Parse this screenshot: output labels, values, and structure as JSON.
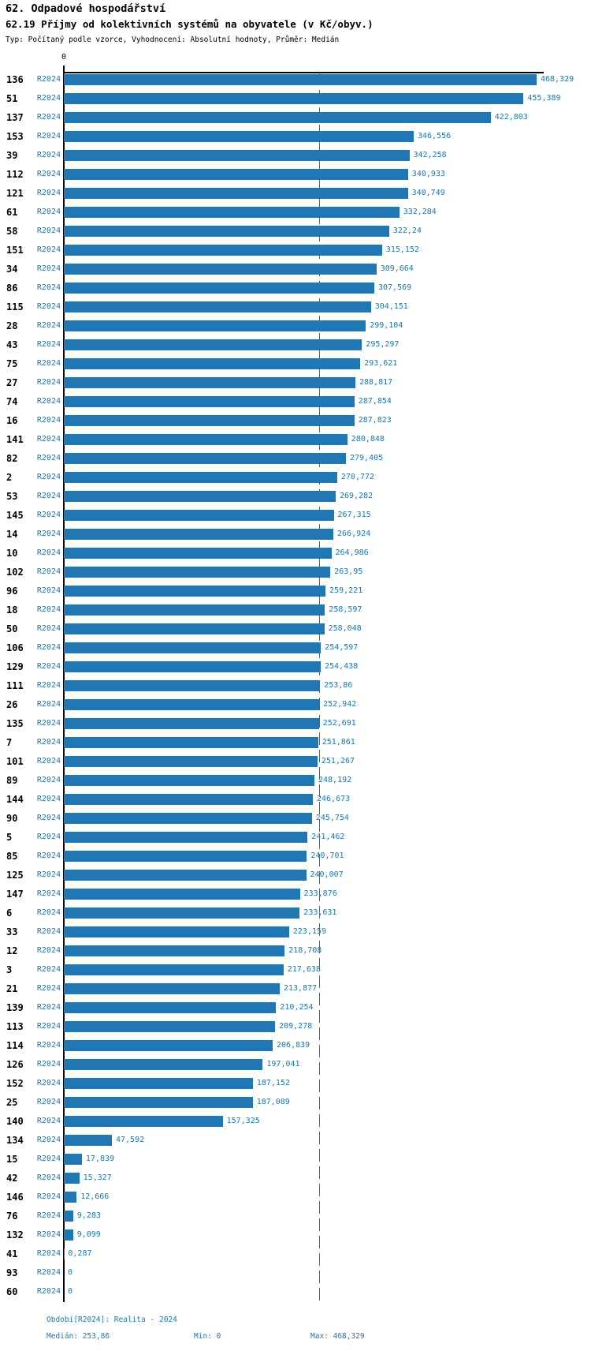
{
  "chart_data": {
    "type": "bar",
    "orientation": "horizontal",
    "title_line1": "62. Odpadové hospodářství",
    "title_line2": "62.19 Příjmy od kolektivních systémů na obyvatele (v Kč/obyv.)",
    "subtitle": "Typ: Počítaný podle vzorce, Vyhodnocení: Absolutní hodnoty, Průměr: Medián",
    "axis": {
      "zero_label": "0",
      "xlim": [
        0,
        475
      ],
      "grid": "none",
      "median_line_value": 253.86
    },
    "colors": {
      "bar": "#1f77b4",
      "value_text": "#1f77b4",
      "period_text": "#1f77b4",
      "id_text": "#000000",
      "median_line": "#1f77b4",
      "axis_line": "#000000"
    },
    "legend": "none",
    "series_period": "R2024",
    "rows": [
      {
        "id": "136",
        "period": "R2024",
        "value": 468.329,
        "value_label": "468,329"
      },
      {
        "id": "51",
        "period": "R2024",
        "value": 455.389,
        "value_label": "455,389"
      },
      {
        "id": "137",
        "period": "R2024",
        "value": 422.803,
        "value_label": "422,803"
      },
      {
        "id": "153",
        "period": "R2024",
        "value": 346.556,
        "value_label": "346,556"
      },
      {
        "id": "39",
        "period": "R2024",
        "value": 342.258,
        "value_label": "342,258"
      },
      {
        "id": "112",
        "period": "R2024",
        "value": 340.933,
        "value_label": "340,933"
      },
      {
        "id": "121",
        "period": "R2024",
        "value": 340.749,
        "value_label": "340,749"
      },
      {
        "id": "61",
        "period": "R2024",
        "value": 332.284,
        "value_label": "332,284"
      },
      {
        "id": "58",
        "period": "R2024",
        "value": 322.24,
        "value_label": "322,24"
      },
      {
        "id": "151",
        "period": "R2024",
        "value": 315.152,
        "value_label": "315,152"
      },
      {
        "id": "34",
        "period": "R2024",
        "value": 309.664,
        "value_label": "309,664"
      },
      {
        "id": "86",
        "period": "R2024",
        "value": 307.569,
        "value_label": "307,569"
      },
      {
        "id": "115",
        "period": "R2024",
        "value": 304.151,
        "value_label": "304,151"
      },
      {
        "id": "28",
        "period": "R2024",
        "value": 299.104,
        "value_label": "299,104"
      },
      {
        "id": "43",
        "period": "R2024",
        "value": 295.297,
        "value_label": "295,297"
      },
      {
        "id": "75",
        "period": "R2024",
        "value": 293.621,
        "value_label": "293,621"
      },
      {
        "id": "27",
        "period": "R2024",
        "value": 288.817,
        "value_label": "288,817"
      },
      {
        "id": "74",
        "period": "R2024",
        "value": 287.854,
        "value_label": "287,854"
      },
      {
        "id": "16",
        "period": "R2024",
        "value": 287.823,
        "value_label": "287,823"
      },
      {
        "id": "141",
        "period": "R2024",
        "value": 280.848,
        "value_label": "280,848"
      },
      {
        "id": "82",
        "period": "R2024",
        "value": 279.405,
        "value_label": "279,405"
      },
      {
        "id": "2",
        "period": "R2024",
        "value": 270.772,
        "value_label": "270,772"
      },
      {
        "id": "53",
        "period": "R2024",
        "value": 269.282,
        "value_label": "269,282"
      },
      {
        "id": "145",
        "period": "R2024",
        "value": 267.315,
        "value_label": "267,315"
      },
      {
        "id": "14",
        "period": "R2024",
        "value": 266.924,
        "value_label": "266,924"
      },
      {
        "id": "10",
        "period": "R2024",
        "value": 264.986,
        "value_label": "264,986"
      },
      {
        "id": "102",
        "period": "R2024",
        "value": 263.95,
        "value_label": "263,95"
      },
      {
        "id": "96",
        "period": "R2024",
        "value": 259.221,
        "value_label": "259,221"
      },
      {
        "id": "18",
        "period": "R2024",
        "value": 258.597,
        "value_label": "258,597"
      },
      {
        "id": "50",
        "period": "R2024",
        "value": 258.048,
        "value_label": "258,048"
      },
      {
        "id": "106",
        "period": "R2024",
        "value": 254.597,
        "value_label": "254,597"
      },
      {
        "id": "129",
        "period": "R2024",
        "value": 254.438,
        "value_label": "254,438"
      },
      {
        "id": "111",
        "period": "R2024",
        "value": 253.86,
        "value_label": "253,86"
      },
      {
        "id": "26",
        "period": "R2024",
        "value": 252.942,
        "value_label": "252,942"
      },
      {
        "id": "135",
        "period": "R2024",
        "value": 252.691,
        "value_label": "252,691"
      },
      {
        "id": "7",
        "period": "R2024",
        "value": 251.861,
        "value_label": "251,861"
      },
      {
        "id": "101",
        "period": "R2024",
        "value": 251.267,
        "value_label": "251,267"
      },
      {
        "id": "89",
        "period": "R2024",
        "value": 248.192,
        "value_label": "248,192"
      },
      {
        "id": "144",
        "period": "R2024",
        "value": 246.673,
        "value_label": "246,673"
      },
      {
        "id": "90",
        "period": "R2024",
        "value": 245.754,
        "value_label": "245,754"
      },
      {
        "id": "5",
        "period": "R2024",
        "value": 241.462,
        "value_label": "241,462"
      },
      {
        "id": "85",
        "period": "R2024",
        "value": 240.701,
        "value_label": "240,701"
      },
      {
        "id": "125",
        "period": "R2024",
        "value": 240.007,
        "value_label": "240,007"
      },
      {
        "id": "147",
        "period": "R2024",
        "value": 233.876,
        "value_label": "233,876"
      },
      {
        "id": "6",
        "period": "R2024",
        "value": 233.631,
        "value_label": "233,631"
      },
      {
        "id": "33",
        "period": "R2024",
        "value": 223.159,
        "value_label": "223,159"
      },
      {
        "id": "12",
        "period": "R2024",
        "value": 218.708,
        "value_label": "218,708"
      },
      {
        "id": "3",
        "period": "R2024",
        "value": 217.638,
        "value_label": "217,638"
      },
      {
        "id": "21",
        "period": "R2024",
        "value": 213.877,
        "value_label": "213,877"
      },
      {
        "id": "139",
        "period": "R2024",
        "value": 210.254,
        "value_label": "210,254"
      },
      {
        "id": "113",
        "period": "R2024",
        "value": 209.278,
        "value_label": "209,278"
      },
      {
        "id": "114",
        "period": "R2024",
        "value": 206.839,
        "value_label": "206,839"
      },
      {
        "id": "126",
        "period": "R2024",
        "value": 197.041,
        "value_label": "197,041"
      },
      {
        "id": "152",
        "period": "R2024",
        "value": 187.152,
        "value_label": "187,152"
      },
      {
        "id": "25",
        "period": "R2024",
        "value": 187.089,
        "value_label": "187,089"
      },
      {
        "id": "140",
        "period": "R2024",
        "value": 157.325,
        "value_label": "157,325"
      },
      {
        "id": "134",
        "period": "R2024",
        "value": 47.592,
        "value_label": "47,592"
      },
      {
        "id": "15",
        "period": "R2024",
        "value": 17.839,
        "value_label": "17,839"
      },
      {
        "id": "42",
        "period": "R2024",
        "value": 15.327,
        "value_label": "15,327"
      },
      {
        "id": "146",
        "period": "R2024",
        "value": 12.666,
        "value_label": "12,666"
      },
      {
        "id": "76",
        "period": "R2024",
        "value": 9.283,
        "value_label": "9,283"
      },
      {
        "id": "132",
        "period": "R2024",
        "value": 9.099,
        "value_label": "9,099"
      },
      {
        "id": "41",
        "period": "R2024",
        "value": 0.287,
        "value_label": "0,287"
      },
      {
        "id": "93",
        "period": "R2024",
        "value": 0,
        "value_label": "0"
      },
      {
        "id": "60",
        "period": "R2024",
        "value": 0,
        "value_label": "0"
      }
    ],
    "footer": {
      "period_label": "Období[R2024]: Realita - 2024",
      "median_label": "Medián: 253,86",
      "min_label": "Min: 0",
      "max_label": "Max: 468,329"
    }
  }
}
